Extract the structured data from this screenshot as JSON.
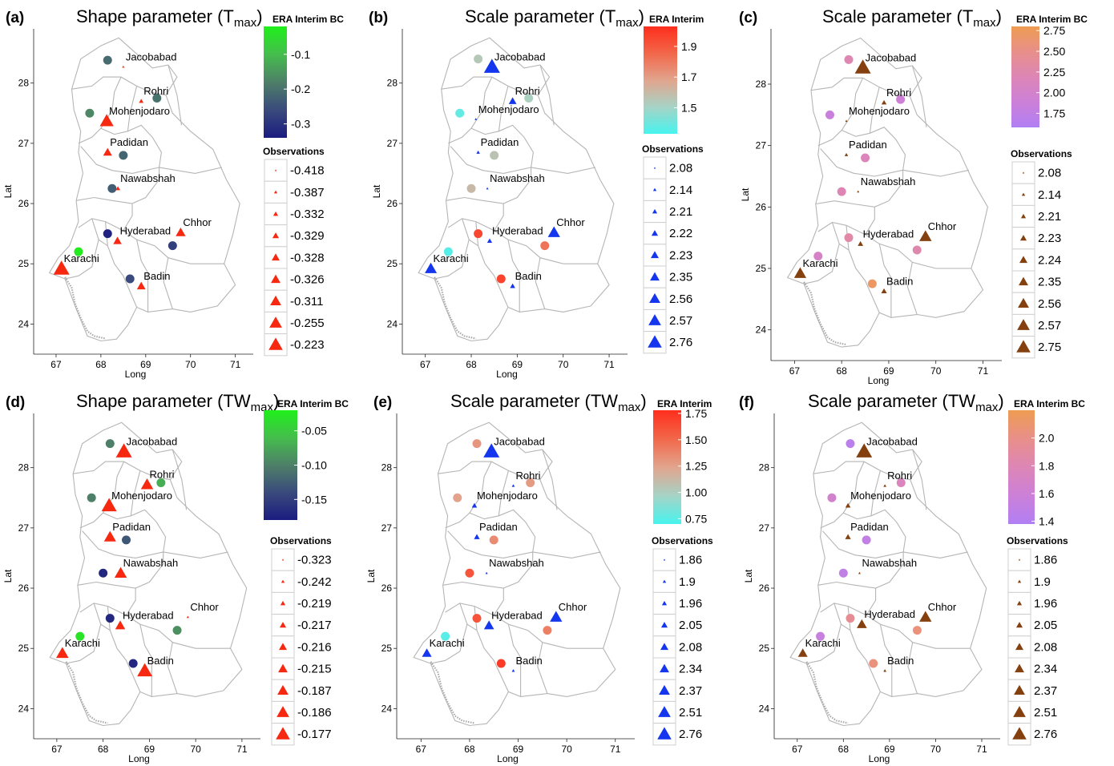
{
  "chart_data": [
    {
      "type": "scatter",
      "panel_label": "(a)",
      "title": "Shape parameter (T",
      "title_sub": "max",
      "xlabel": "Long",
      "ylabel": "Lat",
      "xlim": [
        66.5,
        71.4
      ],
      "ylim": [
        23.5,
        28.9
      ],
      "xticks": [
        67,
        68,
        69,
        70,
        71
      ],
      "yticks": [
        24,
        25,
        26,
        27,
        28
      ],
      "colorbar": {
        "title": "ERA Interim BC",
        "range": [
          -0.34,
          -0.02
        ],
        "ticks": [
          -0.1,
          -0.2,
          -0.3
        ],
        "tick_labels": [
          "-0.1",
          "-0.2",
          "-0.3"
        ],
        "colors": [
          "#1b1c80",
          "#3a4a7c",
          "#4e7f68",
          "#45bd4d",
          "#1ff01a"
        ]
      },
      "legend_title": "Observations",
      "legend_values": [
        "-0.418",
        "-0.387",
        "-0.332",
        "-0.329",
        "-0.328",
        "-0.326",
        "-0.311",
        "-0.255",
        "-0.223"
      ],
      "marker_color": "#f72810",
      "stations": [
        {
          "name": "Jacobabad",
          "lon": 68.5,
          "lat": 28.27
        },
        {
          "name": "Rohri",
          "lon": 68.9,
          "lat": 27.7
        },
        {
          "name": "Mohenjodaro",
          "lon": 68.13,
          "lat": 27.37
        },
        {
          "name": "Padidan",
          "lon": 68.15,
          "lat": 26.85
        },
        {
          "name": "Nawabshah",
          "lon": 68.38,
          "lat": 26.25
        },
        {
          "name": "Hyderabad",
          "lon": 68.37,
          "lat": 25.38
        },
        {
          "name": "Chhor",
          "lon": 69.78,
          "lat": 25.52
        },
        {
          "name": "Karachi",
          "lon": 67.12,
          "lat": 24.92
        },
        {
          "name": "Badin",
          "lon": 68.9,
          "lat": 24.63
        }
      ],
      "observations": [
        -0.418,
        -0.387,
        -0.255,
        -0.326,
        -0.387,
        -0.332,
        -0.311,
        -0.223,
        -0.329
      ],
      "era_points": [
        {
          "lon": 68.15,
          "lat": 28.38,
          "value": -0.21
        },
        {
          "lon": 69.25,
          "lat": 27.75,
          "value": -0.2
        },
        {
          "lon": 67.75,
          "lat": 27.5,
          "value": -0.17
        },
        {
          "lon": 68.5,
          "lat": 26.8,
          "value": -0.22
        },
        {
          "lon": 68.25,
          "lat": 26.25,
          "value": -0.23
        },
        {
          "lon": 68.15,
          "lat": 25.5,
          "value": -0.33
        },
        {
          "lon": 69.6,
          "lat": 25.3,
          "value": -0.28
        },
        {
          "lon": 67.5,
          "lat": 25.2,
          "value": -0.03
        },
        {
          "lon": 68.65,
          "lat": 24.75,
          "value": -0.26
        }
      ]
    },
    {
      "type": "scatter",
      "panel_label": "(b)",
      "title": "Scale parameter (T",
      "title_sub": "max",
      "xlabel": "Long",
      "ylabel": "Lat",
      "xlim": [
        66.5,
        71.4
      ],
      "ylim": [
        23.5,
        28.9
      ],
      "xticks": [
        67,
        68,
        69,
        70,
        71
      ],
      "yticks": [
        24,
        25,
        26,
        27,
        28
      ],
      "colorbar": {
        "title": "ERA Interim",
        "range": [
          1.33,
          2.03
        ],
        "ticks": [
          1.9,
          1.7,
          1.5
        ],
        "tick_labels": [
          "1.9",
          "1.7",
          "1.5"
        ],
        "colors": [
          "#47f3ee",
          "#a6d3c6",
          "#e2a48d",
          "#f2674a",
          "#fe2e1c"
        ]
      },
      "legend_title": "Observations",
      "legend_values": [
        "2.08",
        "2.14",
        "2.21",
        "2.22",
        "2.23",
        "2.35",
        "2.56",
        "2.57",
        "2.76"
      ],
      "marker_color": "#1436ee",
      "stations": [
        {
          "name": "Jacobabad",
          "lon": 68.45,
          "lat": 28.27
        },
        {
          "name": "Rohri",
          "lon": 68.9,
          "lat": 27.7
        },
        {
          "name": "Mohenjodaro",
          "lon": 68.1,
          "lat": 27.4
        },
        {
          "name": "Padidan",
          "lon": 68.15,
          "lat": 26.85
        },
        {
          "name": "Nawabshah",
          "lon": 68.35,
          "lat": 26.25
        },
        {
          "name": "Hyderabad",
          "lon": 68.4,
          "lat": 25.38
        },
        {
          "name": "Chhor",
          "lon": 69.8,
          "lat": 25.52
        },
        {
          "name": "Karachi",
          "lon": 67.12,
          "lat": 24.92
        },
        {
          "name": "Badin",
          "lon": 68.9,
          "lat": 24.63
        }
      ],
      "observations": [
        2.76,
        2.35,
        2.08,
        2.14,
        2.08,
        2.21,
        2.57,
        2.56,
        2.22
      ],
      "era_points": [
        {
          "lon": 68.15,
          "lat": 28.4,
          "value": 1.55
        },
        {
          "lon": 69.25,
          "lat": 27.75,
          "value": 1.52
        },
        {
          "lon": 67.75,
          "lat": 27.5,
          "value": 1.38
        },
        {
          "lon": 68.5,
          "lat": 26.8,
          "value": 1.57
        },
        {
          "lon": 68.0,
          "lat": 26.25,
          "value": 1.6
        },
        {
          "lon": 68.15,
          "lat": 25.5,
          "value": 1.95
        },
        {
          "lon": 69.6,
          "lat": 25.3,
          "value": 1.82
        },
        {
          "lon": 67.5,
          "lat": 25.2,
          "value": 1.36
        },
        {
          "lon": 68.65,
          "lat": 24.75,
          "value": 1.97
        }
      ]
    },
    {
      "type": "scatter",
      "panel_label": "(c)",
      "title": "Scale parameter (T",
      "title_sub": "max",
      "xlabel": "Long",
      "ylabel": "Lat",
      "xlim": [
        66.5,
        71.4
      ],
      "ylim": [
        23.5,
        28.9
      ],
      "xticks": [
        67,
        68,
        69,
        70,
        71
      ],
      "yticks": [
        24,
        25,
        26,
        27,
        28
      ],
      "colorbar": {
        "title": "ERA Interim BC",
        "range": [
          1.58,
          2.8
        ],
        "ticks": [
          2.75,
          2.5,
          2.25,
          2.0,
          1.75
        ],
        "tick_labels": [
          "2.75",
          "2.50",
          "2.25",
          "2.00",
          "1.75"
        ],
        "colors": [
          "#b17ff4",
          "#cc80d8",
          "#dd86b6",
          "#e88f8a",
          "#ee9c52"
        ]
      },
      "legend_title": "Observations",
      "legend_values": [
        "2.08",
        "2.14",
        "2.21",
        "2.23",
        "2.24",
        "2.35",
        "2.56",
        "2.57",
        "2.75"
      ],
      "marker_color": "#84400f",
      "stations": [
        {
          "name": "Jacobabad",
          "lon": 68.45,
          "lat": 28.27
        },
        {
          "name": "Rohri",
          "lon": 68.9,
          "lat": 27.7
        },
        {
          "name": "Mohenjodaro",
          "lon": 68.1,
          "lat": 27.4
        },
        {
          "name": "Padidan",
          "lon": 68.1,
          "lat": 26.85
        },
        {
          "name": "Nawabshah",
          "lon": 68.35,
          "lat": 26.25
        },
        {
          "name": "Hyderabad",
          "lon": 68.4,
          "lat": 25.4
        },
        {
          "name": "Chhor",
          "lon": 69.78,
          "lat": 25.52
        },
        {
          "name": "Karachi",
          "lon": 67.12,
          "lat": 24.92
        },
        {
          "name": "Badin",
          "lon": 68.9,
          "lat": 24.63
        }
      ],
      "observations": [
        2.75,
        2.21,
        2.08,
        2.14,
        2.08,
        2.23,
        2.57,
        2.56,
        2.24
      ],
      "era_points": [
        {
          "lon": 68.15,
          "lat": 28.4,
          "value": 2.22
        },
        {
          "lon": 69.25,
          "lat": 27.75,
          "value": 1.9
        },
        {
          "lon": 67.75,
          "lat": 27.5,
          "value": 1.85
        },
        {
          "lon": 68.5,
          "lat": 26.8,
          "value": 2.15
        },
        {
          "lon": 68.0,
          "lat": 26.25,
          "value": 2.2
        },
        {
          "lon": 68.15,
          "lat": 25.5,
          "value": 2.3
        },
        {
          "lon": 69.6,
          "lat": 25.3,
          "value": 2.25
        },
        {
          "lon": 67.5,
          "lat": 25.2,
          "value": 2.05
        },
        {
          "lon": 68.65,
          "lat": 24.75,
          "value": 2.7
        }
      ]
    },
    {
      "type": "scatter",
      "panel_label": "(d)",
      "title": "Shape parameter (TW",
      "title_sub": "max",
      "xlabel": "Long",
      "ylabel": "Lat",
      "xlim": [
        66.5,
        71.4
      ],
      "ylim": [
        23.5,
        28.9
      ],
      "xticks": [
        67,
        68,
        69,
        70,
        71
      ],
      "yticks": [
        24,
        25,
        26,
        27,
        28
      ],
      "colorbar": {
        "title": "ERA Interim BC",
        "range": [
          -0.18,
          -0.02
        ],
        "ticks": [
          -0.05,
          -0.1,
          -0.15
        ],
        "tick_labels": [
          "-0.05",
          "-0.10",
          "-0.15"
        ],
        "colors": [
          "#1b1c80",
          "#3a4a7c",
          "#4e7f68",
          "#45bd4d",
          "#1ff01a"
        ]
      },
      "legend_title": "Observations",
      "legend_values": [
        "-0.323",
        "-0.242",
        "-0.219",
        "-0.217",
        "-0.216",
        "-0.215",
        "-0.187",
        "-0.186",
        "-0.177"
      ],
      "marker_color": "#f72810",
      "stations": [
        {
          "name": "Jacobabad",
          "lon": 68.45,
          "lat": 28.27
        },
        {
          "name": "Rohri",
          "lon": 68.95,
          "lat": 27.72
        },
        {
          "name": "Mohenjodaro",
          "lon": 68.13,
          "lat": 27.37
        },
        {
          "name": "Padidan",
          "lon": 68.15,
          "lat": 26.85
        },
        {
          "name": "Nawabshah",
          "lon": 68.38,
          "lat": 26.25
        },
        {
          "name": "Hyderabad",
          "lon": 68.37,
          "lat": 25.38
        },
        {
          "name": "Chhor",
          "lon": 69.83,
          "lat": 25.52
        },
        {
          "name": "Karachi",
          "lon": 67.12,
          "lat": 24.92
        },
        {
          "name": "Badin",
          "lon": 68.9,
          "lat": 24.63
        }
      ],
      "observations": [
        -0.177,
        -0.216,
        -0.186,
        -0.219,
        -0.217,
        -0.242,
        -0.323,
        -0.215,
        -0.187
      ],
      "era_points": [
        {
          "lon": 68.15,
          "lat": 28.4,
          "value": -0.1
        },
        {
          "lon": 69.25,
          "lat": 27.75,
          "value": -0.07
        },
        {
          "lon": 67.75,
          "lat": 27.5,
          "value": -0.1
        },
        {
          "lon": 68.5,
          "lat": 26.8,
          "value": -0.13
        },
        {
          "lon": 68.0,
          "lat": 26.25,
          "value": -0.17
        },
        {
          "lon": 68.15,
          "lat": 25.5,
          "value": -0.17
        },
        {
          "lon": 69.6,
          "lat": 25.3,
          "value": -0.09
        },
        {
          "lon": 67.5,
          "lat": 25.2,
          "value": -0.03
        },
        {
          "lon": 68.65,
          "lat": 24.75,
          "value": -0.17
        }
      ]
    },
    {
      "type": "scatter",
      "panel_label": "(e)",
      "title": "Scale parameter (TW",
      "title_sub": "max",
      "xlabel": "Long",
      "ylabel": "Lat",
      "xlim": [
        66.5,
        71.4
      ],
      "ylim": [
        23.5,
        28.9
      ],
      "xticks": [
        67,
        68,
        69,
        70,
        71
      ],
      "yticks": [
        24,
        25,
        26,
        27,
        28
      ],
      "colorbar": {
        "title": "ERA Interim",
        "range": [
          0.7,
          1.78
        ],
        "ticks": [
          1.75,
          1.5,
          1.25,
          1.0,
          0.75
        ],
        "tick_labels": [
          "1.75",
          "1.50",
          "1.25",
          "1.00",
          "0.75"
        ],
        "colors": [
          "#47f3ee",
          "#a6d3c6",
          "#e2a48d",
          "#f2674a",
          "#fe2e1c"
        ]
      },
      "legend_title": "Observations",
      "legend_values": [
        "1.86",
        "1.9",
        "1.96",
        "2.05",
        "2.08",
        "2.34",
        "2.37",
        "2.51",
        "2.76"
      ],
      "marker_color": "#1436ee",
      "stations": [
        {
          "name": "Jacobabad",
          "lon": 68.45,
          "lat": 28.27
        },
        {
          "name": "Rohri",
          "lon": 68.9,
          "lat": 27.7
        },
        {
          "name": "Mohenjodaro",
          "lon": 68.1,
          "lat": 27.37
        },
        {
          "name": "Padidan",
          "lon": 68.15,
          "lat": 26.85
        },
        {
          "name": "Nawabshah",
          "lon": 68.35,
          "lat": 26.25
        },
        {
          "name": "Hyderabad",
          "lon": 68.4,
          "lat": 25.38
        },
        {
          "name": "Chhor",
          "lon": 69.78,
          "lat": 25.52
        },
        {
          "name": "Karachi",
          "lon": 67.12,
          "lat": 24.92
        },
        {
          "name": "Badin",
          "lon": 68.9,
          "lat": 24.63
        }
      ],
      "observations": [
        2.76,
        1.9,
        2.05,
        2.08,
        1.86,
        2.37,
        2.51,
        2.34,
        1.9
      ],
      "era_points": [
        {
          "lon": 68.15,
          "lat": 28.4,
          "value": 1.3
        },
        {
          "lon": 69.25,
          "lat": 27.75,
          "value": 1.28
        },
        {
          "lon": 67.75,
          "lat": 27.5,
          "value": 1.25
        },
        {
          "lon": 68.5,
          "lat": 26.8,
          "value": 1.35
        },
        {
          "lon": 68.0,
          "lat": 26.25,
          "value": 1.6
        },
        {
          "lon": 68.15,
          "lat": 25.5,
          "value": 1.6
        },
        {
          "lon": 69.6,
          "lat": 25.3,
          "value": 1.4
        },
        {
          "lon": 67.5,
          "lat": 25.2,
          "value": 0.75
        },
        {
          "lon": 68.65,
          "lat": 24.75,
          "value": 1.72
        }
      ]
    },
    {
      "type": "scatter",
      "panel_label": "(f)",
      "title": "Scale parameter (TW",
      "title_sub": "max",
      "xlabel": "Long",
      "ylabel": "Lat",
      "xlim": [
        66.5,
        71.4
      ],
      "ylim": [
        23.5,
        28.9
      ],
      "xticks": [
        67,
        68,
        69,
        70,
        71
      ],
      "yticks": [
        24,
        25,
        26,
        27,
        28
      ],
      "colorbar": {
        "title": "ERA Interim BC",
        "range": [
          1.38,
          2.2
        ],
        "ticks": [
          2.0,
          1.8,
          1.6,
          1.4
        ],
        "tick_labels": [
          "2.0",
          "1.8",
          "1.6",
          "1.4"
        ],
        "colors": [
          "#b17ff4",
          "#cc80d8",
          "#dd86b6",
          "#e88f8a",
          "#ee9c52"
        ]
      },
      "legend_title": "Observations",
      "legend_values": [
        "1.86",
        "1.9",
        "1.96",
        "2.05",
        "2.08",
        "2.34",
        "2.37",
        "2.51",
        "2.76"
      ],
      "marker_color": "#84400f",
      "stations": [
        {
          "name": "Jacobabad",
          "lon": 68.45,
          "lat": 28.27
        },
        {
          "name": "Rohri",
          "lon": 68.9,
          "lat": 27.7
        },
        {
          "name": "Mohenjodaro",
          "lon": 68.1,
          "lat": 27.37
        },
        {
          "name": "Padidan",
          "lon": 68.1,
          "lat": 26.85
        },
        {
          "name": "Nawabshah",
          "lon": 68.35,
          "lat": 26.25
        },
        {
          "name": "Hyderabad",
          "lon": 68.4,
          "lat": 25.4
        },
        {
          "name": "Chhor",
          "lon": 69.78,
          "lat": 25.52
        },
        {
          "name": "Karachi",
          "lon": 67.12,
          "lat": 24.92
        },
        {
          "name": "Badin",
          "lon": 68.9,
          "lat": 24.63
        }
      ],
      "observations": [
        2.76,
        1.9,
        2.05,
        2.08,
        1.86,
        2.37,
        2.51,
        2.34,
        1.9
      ],
      "era_points": [
        {
          "lon": 68.15,
          "lat": 28.4,
          "value": 1.45
        },
        {
          "lon": 69.25,
          "lat": 27.75,
          "value": 1.75
        },
        {
          "lon": 67.75,
          "lat": 27.5,
          "value": 1.65
        },
        {
          "lon": 68.5,
          "lat": 26.8,
          "value": 1.5
        },
        {
          "lon": 68.0,
          "lat": 26.25,
          "value": 1.5
        },
        {
          "lon": 68.15,
          "lat": 25.5,
          "value": 1.95
        },
        {
          "lon": 69.6,
          "lat": 25.3,
          "value": 2.05
        },
        {
          "lon": 67.5,
          "lat": 25.2,
          "value": 1.55
        },
        {
          "lon": 68.65,
          "lat": 24.75,
          "value": 2.05
        }
      ]
    }
  ]
}
